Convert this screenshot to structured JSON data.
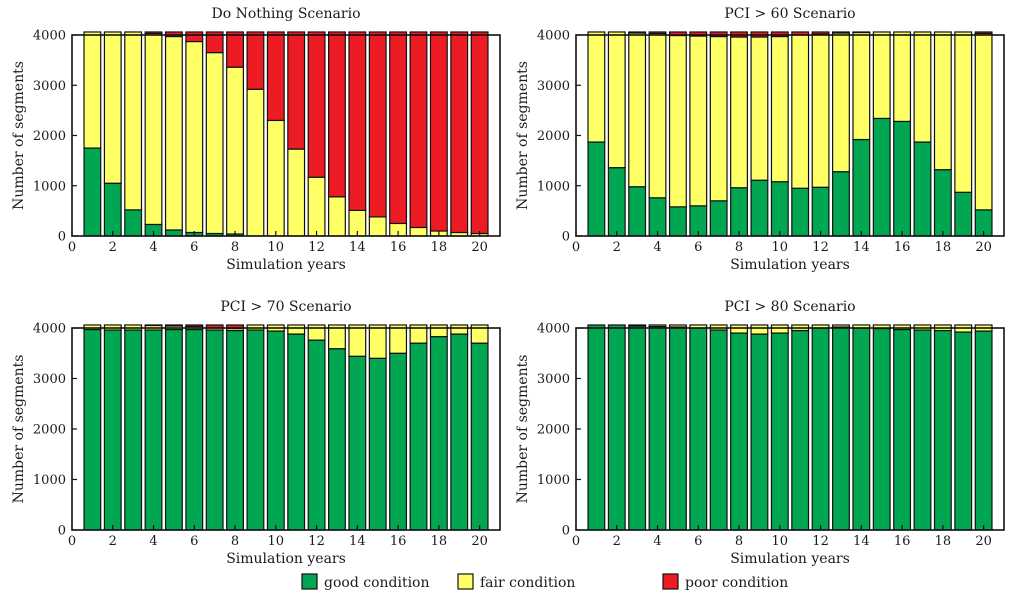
{
  "figure": {
    "colors": {
      "good": "#00a651",
      "fair": "#ffff66",
      "poor": "#ed1c24"
    },
    "legend": [
      {
        "key": "good",
        "label": "good condition"
      },
      {
        "key": "fair",
        "label": "fair condition"
      },
      {
        "key": "poor",
        "label": "poor condition"
      }
    ]
  },
  "chart_data": [
    {
      "type": "bar",
      "stacked": true,
      "title": "Do Nothing Scenario",
      "xlabel": "Simulation years",
      "ylabel": "Number of segments",
      "xlim": [
        0,
        21
      ],
      "ylim": [
        0,
        4000
      ],
      "xticks": [
        0,
        2,
        4,
        6,
        8,
        10,
        12,
        14,
        16,
        18,
        20
      ],
      "yticks": [
        0,
        1000,
        2000,
        3000,
        4000
      ],
      "categories": [
        1,
        2,
        3,
        4,
        5,
        6,
        7,
        8,
        9,
        10,
        11,
        12,
        13,
        14,
        15,
        16,
        17,
        18,
        19,
        20
      ],
      "series": [
        {
          "name": "good condition",
          "values": [
            1750,
            1050,
            520,
            230,
            120,
            70,
            50,
            40,
            0,
            0,
            0,
            0,
            0,
            0,
            0,
            0,
            0,
            0,
            0,
            0
          ]
        },
        {
          "name": "fair condition",
          "values": [
            2310,
            3010,
            3540,
            3800,
            3850,
            3800,
            3600,
            3320,
            2920,
            2300,
            1730,
            1170,
            780,
            510,
            380,
            250,
            170,
            100,
            70,
            50
          ]
        },
        {
          "name": "poor condition",
          "values": [
            0,
            0,
            0,
            30,
            90,
            190,
            410,
            700,
            1140,
            1760,
            2330,
            2890,
            3280,
            3550,
            3680,
            3810,
            3890,
            3960,
            3990,
            4010
          ]
        }
      ]
    },
    {
      "type": "bar",
      "stacked": true,
      "title": "PCI > 60 Scenario",
      "xlabel": "Simulation years",
      "ylabel": "Number of segments",
      "xlim": [
        0,
        21
      ],
      "ylim": [
        0,
        4000
      ],
      "xticks": [
        0,
        2,
        4,
        6,
        8,
        10,
        12,
        14,
        16,
        18,
        20
      ],
      "yticks": [
        0,
        1000,
        2000,
        3000,
        4000
      ],
      "categories": [
        1,
        2,
        3,
        4,
        5,
        6,
        7,
        8,
        9,
        10,
        11,
        12,
        13,
        14,
        15,
        16,
        17,
        18,
        19,
        20
      ],
      "series": [
        {
          "name": "good condition",
          "values": [
            1870,
            1360,
            980,
            760,
            580,
            600,
            700,
            960,
            1110,
            1080,
            950,
            970,
            1280,
            1920,
            2340,
            2280,
            1870,
            1320,
            870,
            520
          ]
        },
        {
          "name": "fair condition",
          "values": [
            2190,
            2700,
            3060,
            3270,
            3410,
            3380,
            3270,
            3000,
            2850,
            2890,
            3050,
            3050,
            2760,
            2130,
            1720,
            1780,
            2190,
            2740,
            3190,
            3510
          ]
        },
        {
          "name": "poor condition",
          "values": [
            0,
            0,
            20,
            30,
            70,
            80,
            90,
            100,
            100,
            90,
            60,
            40,
            20,
            10,
            0,
            0,
            0,
            0,
            0,
            30
          ]
        }
      ]
    },
    {
      "type": "bar",
      "stacked": true,
      "title": "PCI > 70 Scenario",
      "xlabel": "Simulation years",
      "ylabel": "Number of segments",
      "xlim": [
        0,
        21
      ],
      "ylim": [
        0,
        4000
      ],
      "xticks": [
        0,
        2,
        4,
        6,
        8,
        10,
        12,
        14,
        16,
        18,
        20
      ],
      "yticks": [
        0,
        1000,
        2000,
        3000,
        4000
      ],
      "categories": [
        1,
        2,
        3,
        4,
        5,
        6,
        7,
        8,
        9,
        10,
        11,
        12,
        13,
        14,
        15,
        16,
        17,
        18,
        19,
        20
      ],
      "series": [
        {
          "name": "good condition",
          "values": [
            3970,
            3960,
            3960,
            3960,
            3970,
            3970,
            3960,
            3950,
            3960,
            3940,
            3880,
            3760,
            3590,
            3440,
            3400,
            3500,
            3700,
            3830,
            3880,
            3700
          ]
        },
        {
          "name": "fair condition",
          "values": [
            90,
            100,
            100,
            90,
            70,
            60,
            40,
            40,
            100,
            120,
            180,
            300,
            470,
            620,
            660,
            560,
            360,
            230,
            180,
            360
          ]
        },
        {
          "name": "poor condition",
          "values": [
            0,
            0,
            0,
            10,
            20,
            30,
            60,
            70,
            0,
            0,
            0,
            0,
            0,
            0,
            0,
            0,
            0,
            0,
            0,
            0
          ]
        }
      ]
    },
    {
      "type": "bar",
      "stacked": true,
      "title": "PCI > 80 Scenario",
      "xlabel": "Simulation years",
      "ylabel": "Number of segments",
      "xlim": [
        0,
        21
      ],
      "ylim": [
        0,
        4000
      ],
      "xticks": [
        0,
        2,
        4,
        6,
        8,
        10,
        12,
        14,
        16,
        18,
        20
      ],
      "yticks": [
        0,
        1000,
        2000,
        3000,
        4000
      ],
      "categories": [
        1,
        2,
        3,
        4,
        5,
        6,
        7,
        8,
        9,
        10,
        11,
        12,
        13,
        14,
        15,
        16,
        17,
        18,
        19,
        20
      ],
      "series": [
        {
          "name": "good condition",
          "values": [
            4060,
            4060,
            4040,
            4030,
            4020,
            4000,
            3960,
            3900,
            3880,
            3900,
            3950,
            4000,
            4020,
            4000,
            3990,
            3970,
            3960,
            3950,
            3920,
            3940
          ]
        },
        {
          "name": "fair condition",
          "values": [
            0,
            0,
            20,
            30,
            40,
            60,
            100,
            160,
            180,
            160,
            110,
            60,
            40,
            60,
            70,
            90,
            100,
            110,
            140,
            120
          ]
        },
        {
          "name": "poor condition",
          "values": [
            0,
            0,
            0,
            0,
            0,
            0,
            0,
            0,
            0,
            0,
            0,
            0,
            0,
            0,
            0,
            0,
            0,
            0,
            0,
            0
          ]
        }
      ]
    }
  ]
}
